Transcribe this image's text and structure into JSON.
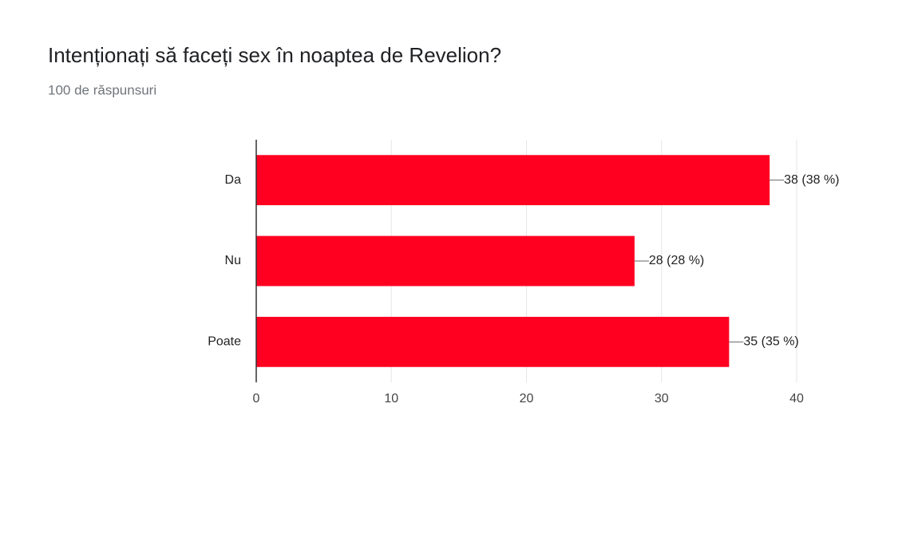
{
  "chart_data": {
    "type": "bar",
    "orientation": "horizontal",
    "title": "Intenționați să faceți sex în noaptea de Revelion?",
    "subtitle": "100 de răspunsuri",
    "categories": [
      "Da",
      "Nu",
      "Poate"
    ],
    "values": [
      38,
      28,
      35
    ],
    "value_labels": [
      "38 (38 %)",
      "28 (28 %)",
      "35 (35 %)"
    ],
    "color": "#ff0021",
    "xlim": [
      0,
      40
    ],
    "xticks": [
      0,
      10,
      20,
      30,
      40
    ],
    "grid": true
  }
}
